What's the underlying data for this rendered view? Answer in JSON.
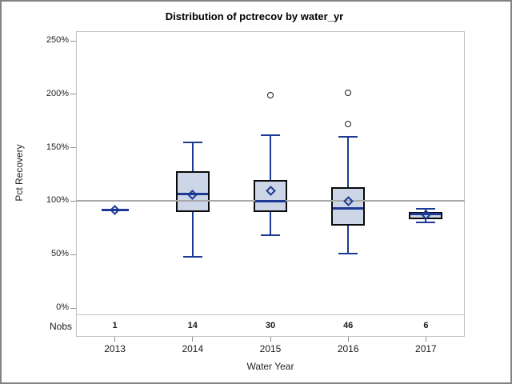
{
  "title": "Distribution of pctrecov by water_yr",
  "axes": {
    "y_label": "Pct Recovery",
    "x_label": "Water Year",
    "nobs_label": "Nobs"
  },
  "colors": {
    "box_fill": "#ccd6e6",
    "box_border": "#0a0a0a",
    "line_blue": "#1c3a94",
    "outlier_stroke": "#1a1a1a",
    "refline_gray": "#a8a8a8",
    "frame_gray": "#c2c2c2",
    "tick_gray": "#8f8f8f"
  },
  "chart_data": {
    "type": "boxplot",
    "title": "Distribution of pctrecov by water_yr",
    "xlabel": "Water Year",
    "ylabel": "Pct Recovery",
    "ylim": [
      0,
      250
    ],
    "ytick_values": [
      0,
      50,
      100,
      150,
      200,
      250
    ],
    "ytick_labels": [
      "0%",
      "50%",
      "100%",
      "150%",
      "200%",
      "250%"
    ],
    "refline_value": 100,
    "grid": "off",
    "legend": "none",
    "categories": [
      "2013",
      "2014",
      "2015",
      "2016",
      "2017"
    ],
    "nobs": [
      1,
      14,
      30,
      46,
      6
    ],
    "series": [
      {
        "category": "2013",
        "n": 1,
        "low": 92,
        "q1": 92,
        "median": 92,
        "q3": 92,
        "high": 92,
        "mean": 92,
        "outliers": []
      },
      {
        "category": "2014",
        "n": 14,
        "low": 48,
        "q1": 90,
        "median": 107,
        "q3": 128,
        "high": 155,
        "mean": 106,
        "outliers": []
      },
      {
        "category": "2015",
        "n": 30,
        "low": 68,
        "q1": 90,
        "median": 100,
        "q3": 120,
        "high": 162,
        "mean": 110,
        "outliers": [
          199
        ]
      },
      {
        "category": "2016",
        "n": 46,
        "low": 51,
        "q1": 77,
        "median": 93,
        "q3": 113,
        "high": 160,
        "mean": 100,
        "outliers": [
          201,
          172
        ]
      },
      {
        "category": "2017",
        "n": 6,
        "low": 80,
        "q1": 83,
        "median": 88,
        "q3": 90,
        "high": 93,
        "mean": 87,
        "outliers": []
      }
    ]
  }
}
